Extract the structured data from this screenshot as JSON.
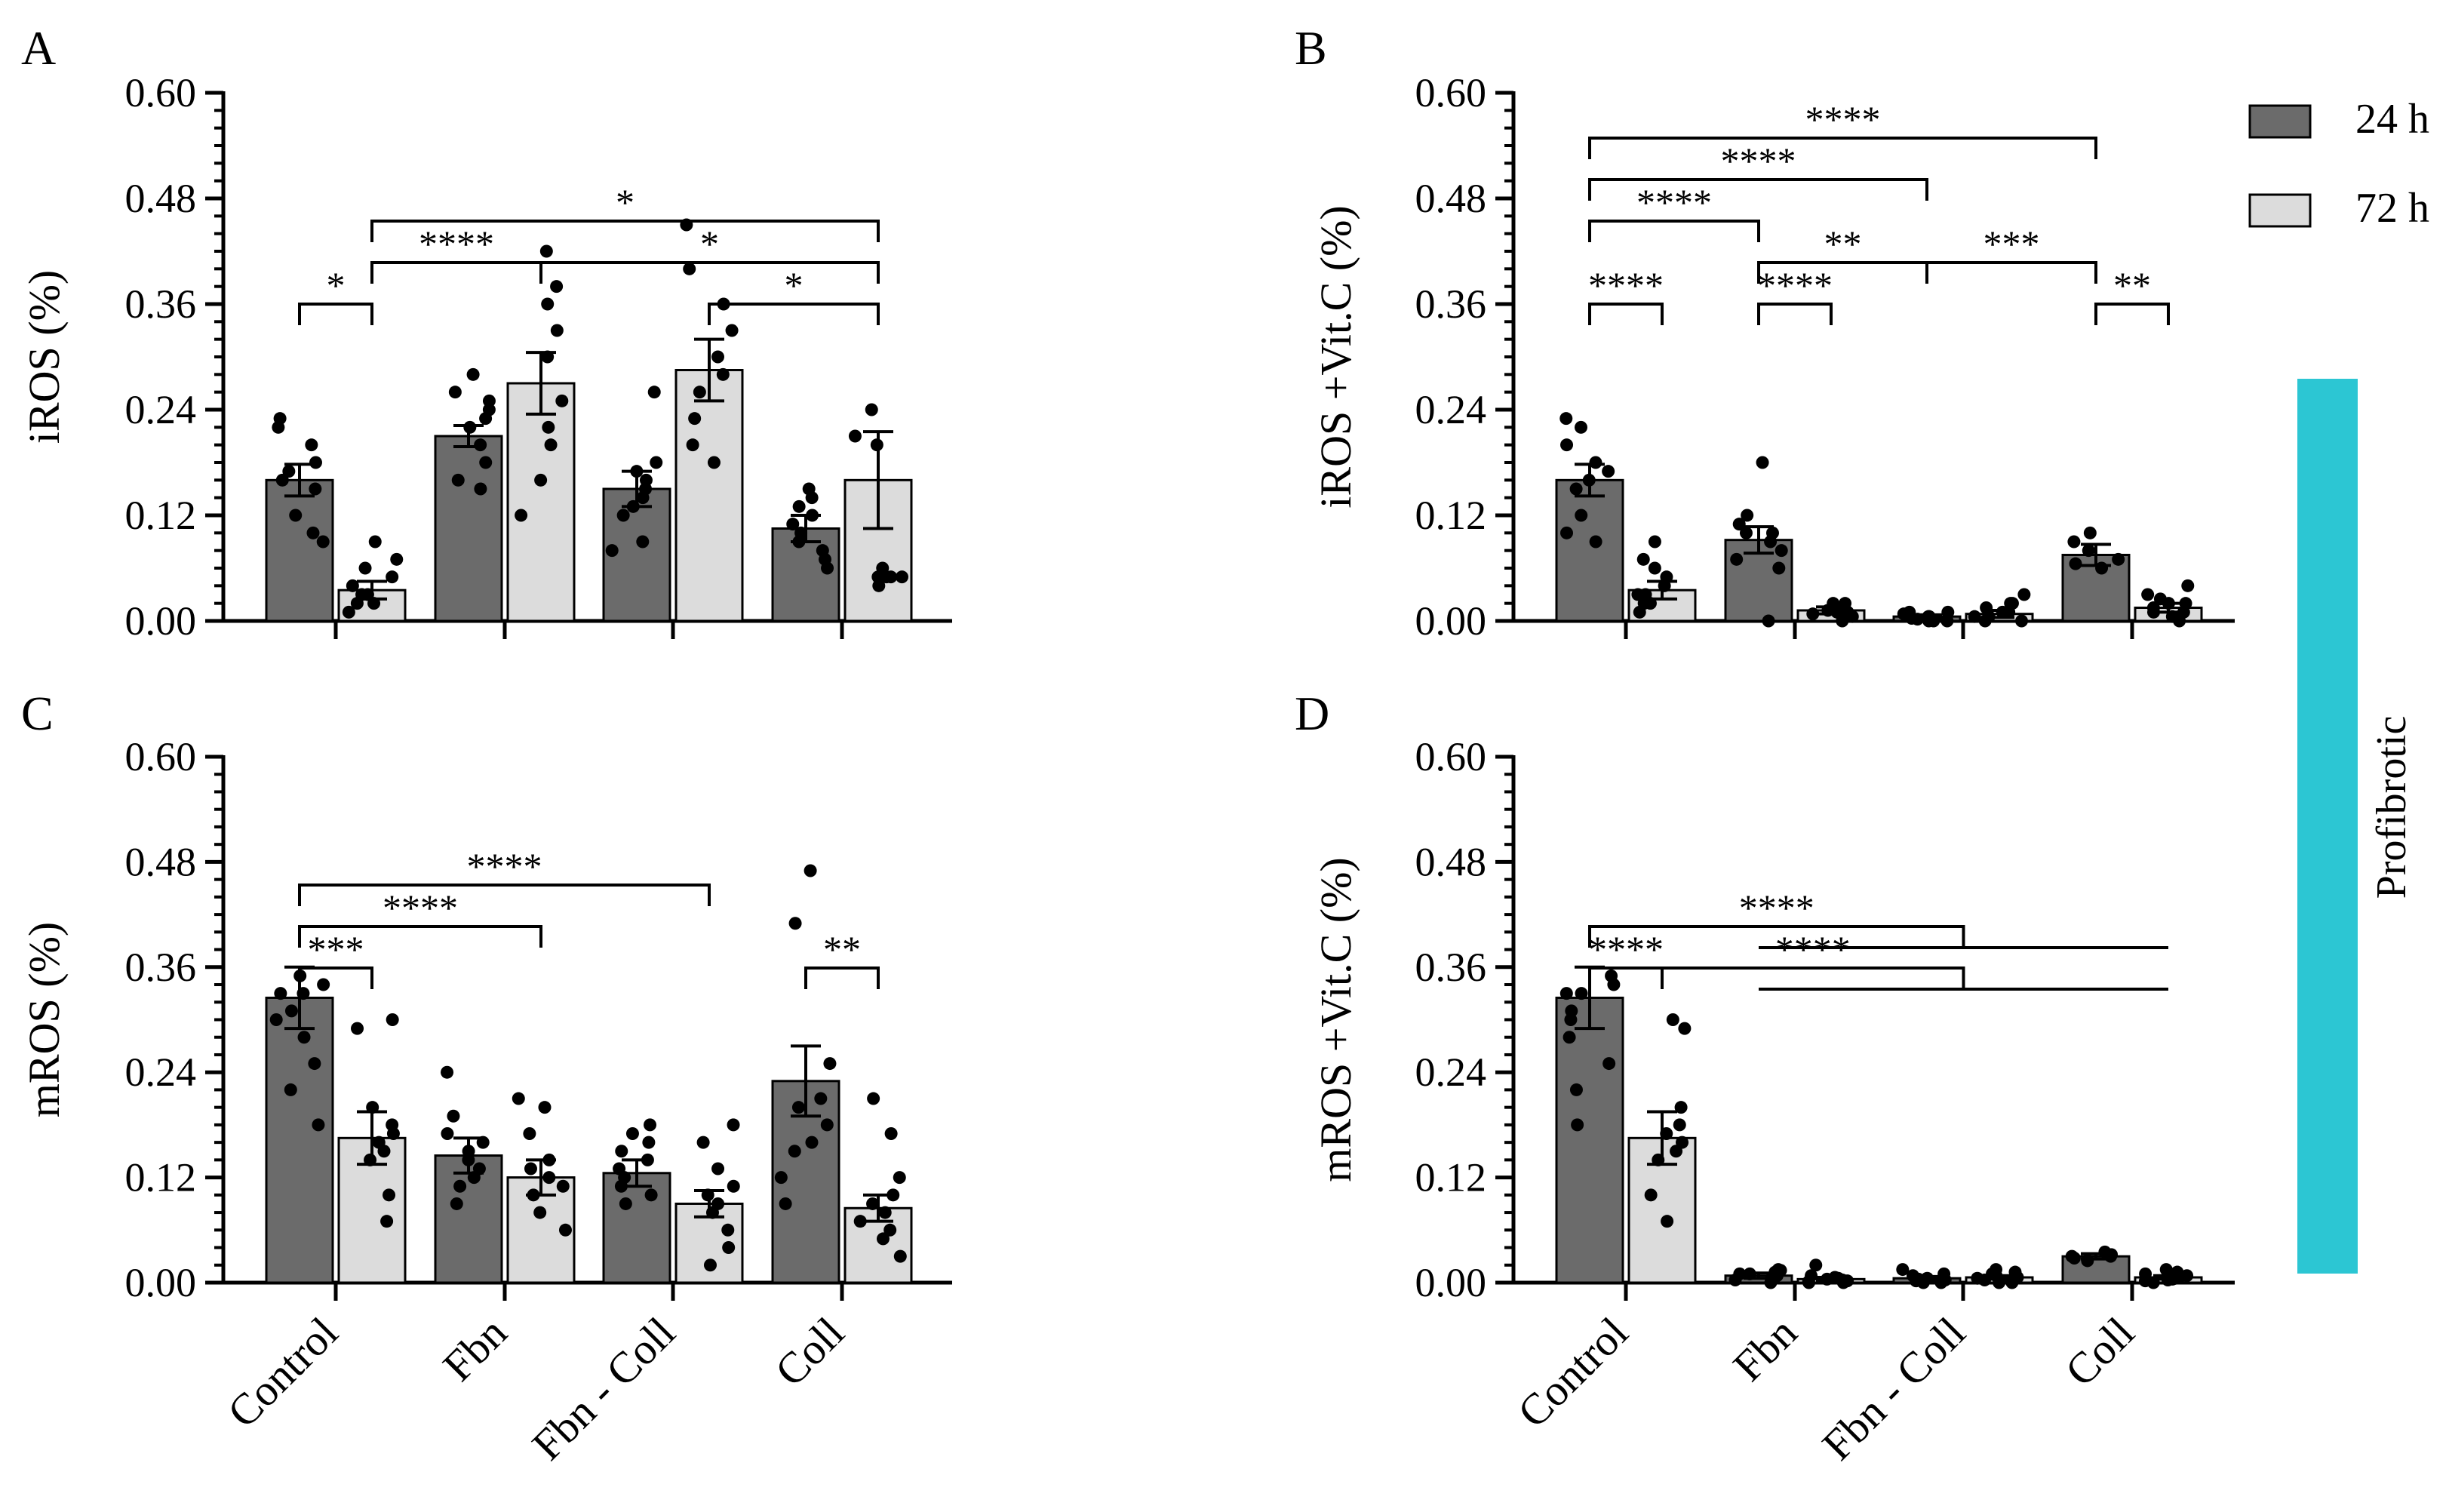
{
  "legend": {
    "items": [
      {
        "label": "24 h",
        "color": "#6b6b6b"
      },
      {
        "label": "72 h",
        "color": "#dcdcdc"
      }
    ]
  },
  "side_label": {
    "text": "Profibrotic",
    "color": "#2cc6d3"
  },
  "chart_data": [
    {
      "id": "A",
      "letter": "A",
      "type": "bar",
      "ylabel": "iROS (%)",
      "ylim": [
        0,
        0.6
      ],
      "yticks": [
        "0.00",
        "0.12",
        "0.24",
        "0.36",
        "0.48",
        "0.60"
      ],
      "categories": [
        "Control",
        "Fbn",
        "Fbn - Coll",
        "Coll"
      ],
      "show_category_labels": false,
      "series": [
        {
          "name": "24 h",
          "values": [
            0.16,
            0.21,
            0.15,
            0.105
          ],
          "errors": [
            0.018,
            0.012,
            0.02,
            0.015
          ],
          "points": [
            [
              0.2,
              0.22,
              0.12,
              0.18,
              0.16,
              0.15,
              0.23,
              0.09,
              0.17,
              0.1
            ],
            [
              0.28,
              0.25,
              0.15,
              0.2,
              0.22,
              0.18,
              0.24,
              0.26,
              0.16,
              0.23
            ],
            [
              0.26,
              0.17,
              0.14,
              0.13,
              0.09,
              0.18,
              0.15,
              0.12,
              0.08,
              0.16
            ],
            [
              0.15,
              0.12,
              0.08,
              0.1,
              0.06,
              0.14,
              0.11,
              0.09,
              0.13,
              0.07
            ]
          ]
        },
        {
          "name": "72 h",
          "values": [
            0.035,
            0.27,
            0.285,
            0.16
          ],
          "errors": [
            0.01,
            0.035,
            0.035,
            0.055
          ],
          "points": [
            [
              0.09,
              0.06,
              0.03,
              0.02,
              0.04,
              0.01,
              0.05,
              0.02,
              0.03,
              0.07
            ],
            [
              0.42,
              0.38,
              0.36,
              0.3,
              0.25,
              0.2,
              0.12,
              0.16,
              0.33,
              0.22
            ],
            [
              0.45,
              0.4,
              0.36,
              0.33,
              0.28,
              0.23,
              0.2,
              0.18,
              0.3,
              0.26
            ],
            [
              0.24,
              0.21,
              0.05,
              0.05,
              0.06,
              0.05,
              0.04,
              0.2,
              0.05,
              0.05
            ]
          ]
        }
      ],
      "comparisons": [
        {
          "from": [
            0,
            0
          ],
          "to": [
            0,
            1
          ],
          "level": 1,
          "label": "*"
        },
        {
          "from": [
            0,
            1
          ],
          "to": [
            1,
            1
          ],
          "level": 2,
          "label": "****"
        },
        {
          "from": [
            3,
            1
          ],
          "to": [
            2,
            1
          ],
          "level": 1,
          "label": "*"
        },
        {
          "from": [
            1,
            1
          ],
          "to": [
            3,
            1
          ],
          "level": 2,
          "label": "*"
        },
        {
          "from": [
            0,
            1
          ],
          "to": [
            3,
            1
          ],
          "level": 3,
          "label": "*"
        }
      ]
    },
    {
      "id": "B",
      "letter": "B",
      "type": "bar",
      "ylabel": "iROS +Vit.C (%)",
      "ylim": [
        0,
        0.6
      ],
      "yticks": [
        "0.00",
        "0.12",
        "0.24",
        "0.36",
        "0.48",
        "0.60"
      ],
      "categories": [
        "Control",
        "Fbn",
        "Fbn - Coll",
        "Coll"
      ],
      "show_category_labels": false,
      "series": [
        {
          "name": "24 h",
          "values": [
            0.16,
            0.092,
            0.005,
            0.075
          ],
          "errors": [
            0.018,
            0.015,
            0.002,
            0.012
          ],
          "points": [
            [
              0.2,
              0.22,
              0.12,
              0.18,
              0.16,
              0.15,
              0.23,
              0.09,
              0.17,
              0.1
            ],
            [
              0.18,
              0.12,
              0.1,
              0.08,
              0.11,
              0.07,
              0.09,
              0.06,
              0.0,
              0.1
            ],
            [
              0.01,
              0.005,
              0.0,
              0.01,
              0.005,
              0.0,
              0.008,
              0.003,
              0.0,
              0.002
            ],
            [
              0.1,
              0.09,
              0.07,
              0.06,
              0.08,
              0.065
            ]
          ]
        },
        {
          "name": "72 h",
          "values": [
            0.035,
            0.012,
            0.008,
            0.015
          ],
          "errors": [
            0.01,
            0.004,
            0.004,
            0.005
          ],
          "points": [
            [
              0.09,
              0.06,
              0.03,
              0.02,
              0.04,
              0.01,
              0.05,
              0.02,
              0.03,
              0.07
            ],
            [
              0.02,
              0.01,
              0.005,
              0.015,
              0.01,
              0.0,
              0.008,
              0.012,
              0.005,
              0.02
            ],
            [
              0.03,
              0.02,
              0.01,
              0.0,
              0.005,
              0.01,
              0.015,
              0.0,
              0.02,
              0.005
            ],
            [
              0.04,
              0.03,
              0.02,
              0.01,
              0.005,
              0.0,
              0.01,
              0.02,
              0.015,
              0.025
            ]
          ]
        }
      ],
      "comparisons": [
        {
          "from": [
            0,
            0
          ],
          "to": [
            0,
            1
          ],
          "level": 1,
          "label": "****"
        },
        {
          "from": [
            1,
            0
          ],
          "to": [
            1,
            1
          ],
          "level": 1,
          "label": "****"
        },
        {
          "from": [
            3,
            0
          ],
          "to": [
            3,
            1
          ],
          "level": 1,
          "label": "**"
        },
        {
          "from": [
            1,
            0
          ],
          "to": [
            2,
            0
          ],
          "level": 2,
          "label": "**"
        },
        {
          "from": [
            2,
            0
          ],
          "to": [
            3,
            0
          ],
          "level": 2,
          "label": "***"
        },
        {
          "from": [
            0,
            0
          ],
          "to": [
            1,
            0
          ],
          "level": 3,
          "label": "****"
        },
        {
          "from": [
            0,
            0
          ],
          "to": [
            2,
            0
          ],
          "level": 4,
          "label": "****"
        },
        {
          "from": [
            0,
            0
          ],
          "to": [
            3,
            0
          ],
          "level": 5,
          "label": "****"
        }
      ]
    },
    {
      "id": "C",
      "letter": "C",
      "type": "bar",
      "ylabel": "mROS (%)",
      "ylim": [
        0,
        0.6
      ],
      "yticks": [
        "0.00",
        "0.12",
        "0.24",
        "0.36",
        "0.48",
        "0.60"
      ],
      "categories": [
        "Control",
        "Fbn",
        "Fbn - Coll",
        "Coll"
      ],
      "show_category_labels": true,
      "series": [
        {
          "name": "24 h",
          "values": [
            0.325,
            0.145,
            0.125,
            0.23
          ],
          "errors": [
            0.035,
            0.02,
            0.015,
            0.04
          ],
          "points": [
            [
              0.35,
              0.34,
              0.33,
              0.31,
              0.28,
              0.25,
              0.22,
              0.18,
              0.3,
              0.33
            ],
            [
              0.24,
              0.19,
              0.17,
              0.15,
              0.13,
              0.11,
              0.09,
              0.14,
              0.16,
              0.12
            ],
            [
              0.18,
              0.16,
              0.15,
              0.13,
              0.11,
              0.09,
              0.14,
              0.17,
              0.12,
              0.1
            ],
            [
              0.47,
              0.41,
              0.25,
              0.21,
              0.18,
              0.15,
              0.12,
              0.09,
              0.2,
              0.16
            ]
          ]
        },
        {
          "name": "72 h",
          "values": [
            0.165,
            0.12,
            0.09,
            0.085
          ],
          "errors": [
            0.03,
            0.02,
            0.015,
            0.015
          ],
          "points": [
            [
              0.3,
              0.29,
              0.2,
              0.17,
              0.16,
              0.14,
              0.1,
              0.07,
              0.18,
              0.15
            ],
            [
              0.21,
              0.2,
              0.17,
              0.14,
              0.12,
              0.1,
              0.08,
              0.06,
              0.13,
              0.11
            ],
            [
              0.18,
              0.16,
              0.13,
              0.1,
              0.08,
              0.06,
              0.04,
              0.02,
              0.11,
              0.09
            ],
            [
              0.21,
              0.17,
              0.12,
              0.09,
              0.07,
              0.05,
              0.03,
              0.1,
              0.08,
              0.06
            ]
          ]
        }
      ],
      "comparisons": [
        {
          "from": [
            0,
            0
          ],
          "to": [
            0,
            1
          ],
          "level": 1,
          "label": "***"
        },
        {
          "from": [
            3,
            0
          ],
          "to": [
            3,
            1
          ],
          "level": 1,
          "label": "**"
        },
        {
          "from": [
            0,
            0
          ],
          "to": [
            1,
            1
          ],
          "level": 2,
          "label": "****"
        },
        {
          "from": [
            0,
            0
          ],
          "to": [
            2,
            1
          ],
          "level": 3,
          "label": "****"
        }
      ]
    },
    {
      "id": "D",
      "letter": "D",
      "type": "bar",
      "ylabel": "mROS +Vit.C (%)",
      "ylim": [
        0,
        0.6
      ],
      "yticks": [
        "0.00",
        "0.12",
        "0.24",
        "0.36",
        "0.48",
        "0.60"
      ],
      "categories": [
        "Control",
        "Fbn",
        "Fbn - Coll",
        "Coll"
      ],
      "show_category_labels": true,
      "series": [
        {
          "name": "24 h",
          "values": [
            0.325,
            0.008,
            0.005,
            0.03
          ],
          "errors": [
            0.035,
            0.003,
            0.002,
            0.003
          ],
          "points": [
            [
              0.35,
              0.34,
              0.33,
              0.31,
              0.28,
              0.25,
              0.22,
              0.18,
              0.3,
              0.33
            ],
            [
              0.01,
              0.015,
              0.005,
              0.0,
              0.012,
              0.008,
              0.003,
              0.01,
              0.006,
              0.014
            ],
            [
              0.005,
              0.0,
              0.01,
              0.002,
              0.015,
              0.004,
              0.008,
              0.0,
              0.003,
              0.006
            ],
            [
              0.035,
              0.03,
              0.028,
              0.032,
              0.025,
              0.03
            ]
          ]
        },
        {
          "name": "72 h",
          "values": [
            0.165,
            0.004,
            0.006,
            0.006
          ],
          "errors": [
            0.03,
            0.002,
            0.002,
            0.002
          ],
          "points": [
            [
              0.3,
              0.29,
              0.2,
              0.17,
              0.16,
              0.14,
              0.1,
              0.07,
              0.18,
              0.15
            ],
            [
              0.02,
              0.005,
              0.0,
              0.003,
              0.008,
              0.002,
              0.006,
              0.0,
              0.004,
              0.001
            ],
            [
              0.015,
              0.01,
              0.005,
              0.0,
              0.008,
              0.012,
              0.003,
              0.006,
              0.002,
              0.0
            ],
            [
              0.015,
              0.01,
              0.005,
              0.0,
              0.008,
              0.003,
              0.006,
              0.002,
              0.004,
              0.012
            ]
          ]
        }
      ],
      "comparisons": [
        {
          "from": [
            0,
            0
          ],
          "to": [
            0,
            1
          ],
          "level": 1,
          "label": "****"
        }
      ],
      "group_comparisons": [
        {
          "from": [
            0,
            0
          ],
          "to_span": [
            [
              1,
              0
            ],
            [
              3,
              1
            ]
          ],
          "level": 2,
          "label": "****"
        },
        {
          "from": [
            0,
            1
          ],
          "to_span": [
            [
              1,
              0
            ],
            [
              3,
              1
            ]
          ],
          "level": 1,
          "label": "****"
        }
      ]
    }
  ]
}
